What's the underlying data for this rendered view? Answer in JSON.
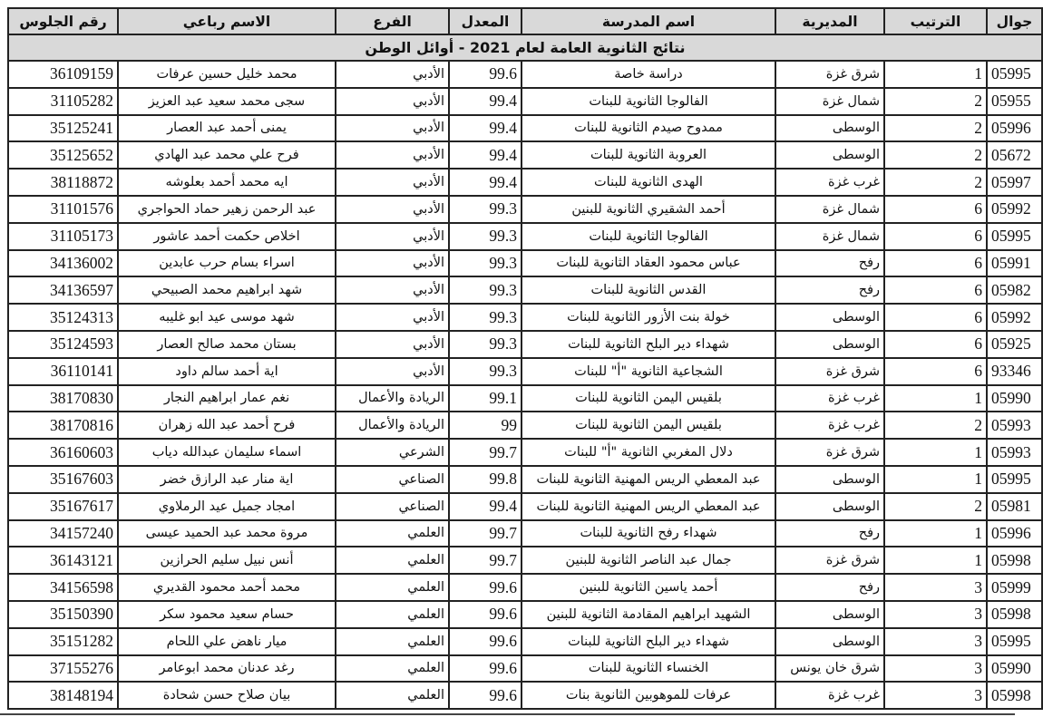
{
  "title": "نتائج الثانوية العامة لعام 2021 - أوائل الوطن",
  "headers": {
    "phone": "جوال",
    "rank": "الترتيب",
    "directorate": "المديرية",
    "school": "اسم المدرسة",
    "average": "المعدل",
    "branch": "الفرع",
    "name": "الاسم رباعي",
    "seat": "رقم الجلوس"
  },
  "rows": [
    {
      "phone": "05995",
      "rank": "1",
      "directorate": "شرق غزة",
      "school": "دراسة خاصة",
      "average": "99.6",
      "branch": "الأدبي",
      "name": "محمد خليل حسين عرفات",
      "seat": "36109159"
    },
    {
      "phone": "05955",
      "rank": "2",
      "directorate": "شمال غزة",
      "school": "الفالوجا الثانوية للبنات",
      "average": "99.4",
      "branch": "الأدبي",
      "name": "سجى محمد سعيد عبد العزيز",
      "seat": "31105282"
    },
    {
      "phone": "05996",
      "rank": "2",
      "directorate": "الوسطى",
      "school": "ممدوح صيدم الثانوية للبنات",
      "average": "99.4",
      "branch": "الأدبي",
      "name": "يمنى أحمد عبد العصار",
      "seat": "35125241"
    },
    {
      "phone": "05672",
      "rank": "2",
      "directorate": "الوسطى",
      "school": "العروبة الثانوية للبنات",
      "average": "99.4",
      "branch": "الأدبي",
      "name": "فرح علي محمد عبد الهادي",
      "seat": "35125652"
    },
    {
      "phone": "05997",
      "rank": "2",
      "directorate": "غرب غزة",
      "school": "الهدى الثانوية للبنات",
      "average": "99.4",
      "branch": "الأدبي",
      "name": "ايه محمد أحمد بعلوشه",
      "seat": "38118872"
    },
    {
      "phone": "05992",
      "rank": "6",
      "directorate": "شمال غزة",
      "school": "أحمد الشقيري الثانوية للبنين",
      "average": "99.3",
      "branch": "الأدبي",
      "name": "عبد الرحمن زهير حماد الحواجري",
      "seat": "31101576"
    },
    {
      "phone": "05995",
      "rank": "6",
      "directorate": "شمال غزة",
      "school": "الفالوجا الثانوية للبنات",
      "average": "99.3",
      "branch": "الأدبي",
      "name": "اخلاص حكمت أحمد عاشور",
      "seat": "31105173"
    },
    {
      "phone": "05991",
      "rank": "6",
      "directorate": "رفح",
      "school": "عباس محمود العقاد الثانوية للبنات",
      "average": "99.3",
      "branch": "الأدبي",
      "name": "اسراء بسام حرب عابدين",
      "seat": "34136002"
    },
    {
      "phone": "05982",
      "rank": "6",
      "directorate": "رفح",
      "school": "القدس الثانوية للبنات",
      "average": "99.3",
      "branch": "الأدبي",
      "name": "شهد ابراهيم محمد الصبيحي",
      "seat": "34136597"
    },
    {
      "phone": "05992",
      "rank": "6",
      "directorate": "الوسطى",
      "school": "خولة بنت الأزور الثانوية للبنات",
      "average": "99.3",
      "branch": "الأدبي",
      "name": "شهد موسى عيد ابو غليبه",
      "seat": "35124313"
    },
    {
      "phone": "05925",
      "rank": "6",
      "directorate": "الوسطى",
      "school": "شهداء دير البلح الثانوية للبنات",
      "average": "99.3",
      "branch": "الأدبي",
      "name": "بستان محمد صالح العصار",
      "seat": "35124593"
    },
    {
      "phone": "93346",
      "rank": "6",
      "directorate": "شرق غزة",
      "school": "الشجاعية الثانوية \"أ\" للبنات",
      "average": "99.3",
      "branch": "الأدبي",
      "name": "اية أحمد سالم داود",
      "seat": "36110141"
    },
    {
      "phone": "05990",
      "rank": "1",
      "directorate": "غرب غزة",
      "school": "بلقيس اليمن الثانوية للبنات",
      "average": "99.1",
      "branch": "الريادة والأعمال",
      "name": "نغم عمار ابراهيم النجار",
      "seat": "38170830"
    },
    {
      "phone": "05993",
      "rank": "2",
      "directorate": "غرب غزة",
      "school": "بلقيس اليمن الثانوية للبنات",
      "average": "99",
      "branch": "الريادة والأعمال",
      "name": "فرح أحمد عبد الله زهران",
      "seat": "38170816"
    },
    {
      "phone": "05993",
      "rank": "1",
      "directorate": "شرق غزة",
      "school": "دلال المغربي الثانوية \"أ\" للبنات",
      "average": "99.7",
      "branch": "الشرعي",
      "name": "اسماء سليمان عبدالله دياب",
      "seat": "36160603"
    },
    {
      "phone": "05995",
      "rank": "1",
      "directorate": "الوسطى",
      "school": "عبد المعطي الريس المهنية الثانوية للبنات",
      "average": "99.8",
      "branch": "الصناعي",
      "name": "اية منار عبد الرازق خضر",
      "seat": "35167603"
    },
    {
      "phone": "05981",
      "rank": "2",
      "directorate": "الوسطى",
      "school": "عبد المعطي الريس المهنية الثانوية للبنات",
      "average": "99.4",
      "branch": "الصناعي",
      "name": "امجاد جميل عيد الرملاوي",
      "seat": "35167617"
    },
    {
      "phone": "05996",
      "rank": "1",
      "directorate": "رفح",
      "school": "شهداء رفح الثانوية للبنات",
      "average": "99.7",
      "branch": "العلمي",
      "name": "مروة محمد عبد الحميد عيسى",
      "seat": "34157240"
    },
    {
      "phone": "05998",
      "rank": "1",
      "directorate": "شرق غزة",
      "school": "جمال عبد الناصر الثانوية للبنين",
      "average": "99.7",
      "branch": "العلمي",
      "name": "أنس نبيل سليم الحرازين",
      "seat": "36143121"
    },
    {
      "phone": "05999",
      "rank": "3",
      "directorate": "رفح",
      "school": "أحمد ياسين الثانوية للبنين",
      "average": "99.6",
      "branch": "العلمي",
      "name": "محمد أحمد محمود القديري",
      "seat": "34156598"
    },
    {
      "phone": "05998",
      "rank": "3",
      "directorate": "الوسطى",
      "school": "الشهيد ابراهيم المقادمة الثانوية للبنين",
      "average": "99.6",
      "branch": "العلمي",
      "name": "حسام سعيد محمود سكر",
      "seat": "35150390"
    },
    {
      "phone": "05995",
      "rank": "3",
      "directorate": "الوسطى",
      "school": "شهداء دير البلح الثانوية للبنات",
      "average": "99.6",
      "branch": "العلمي",
      "name": "ميار ناهض علي اللحام",
      "seat": "35151282"
    },
    {
      "phone": "05990",
      "rank": "3",
      "directorate": "شرق خان يونس",
      "school": "الخنساء الثانوية للبنات",
      "average": "99.6",
      "branch": "العلمي",
      "name": "رغد عدنان محمد ابوعامر",
      "seat": "37155276"
    },
    {
      "phone": "05998",
      "rank": "3",
      "directorate": "غرب غزة",
      "school": "عرفات للموهوبين الثانوية بنات",
      "average": "99.6",
      "branch": "العلمي",
      "name": "بيان صلاح حسن شحادة",
      "seat": "38148194"
    }
  ]
}
